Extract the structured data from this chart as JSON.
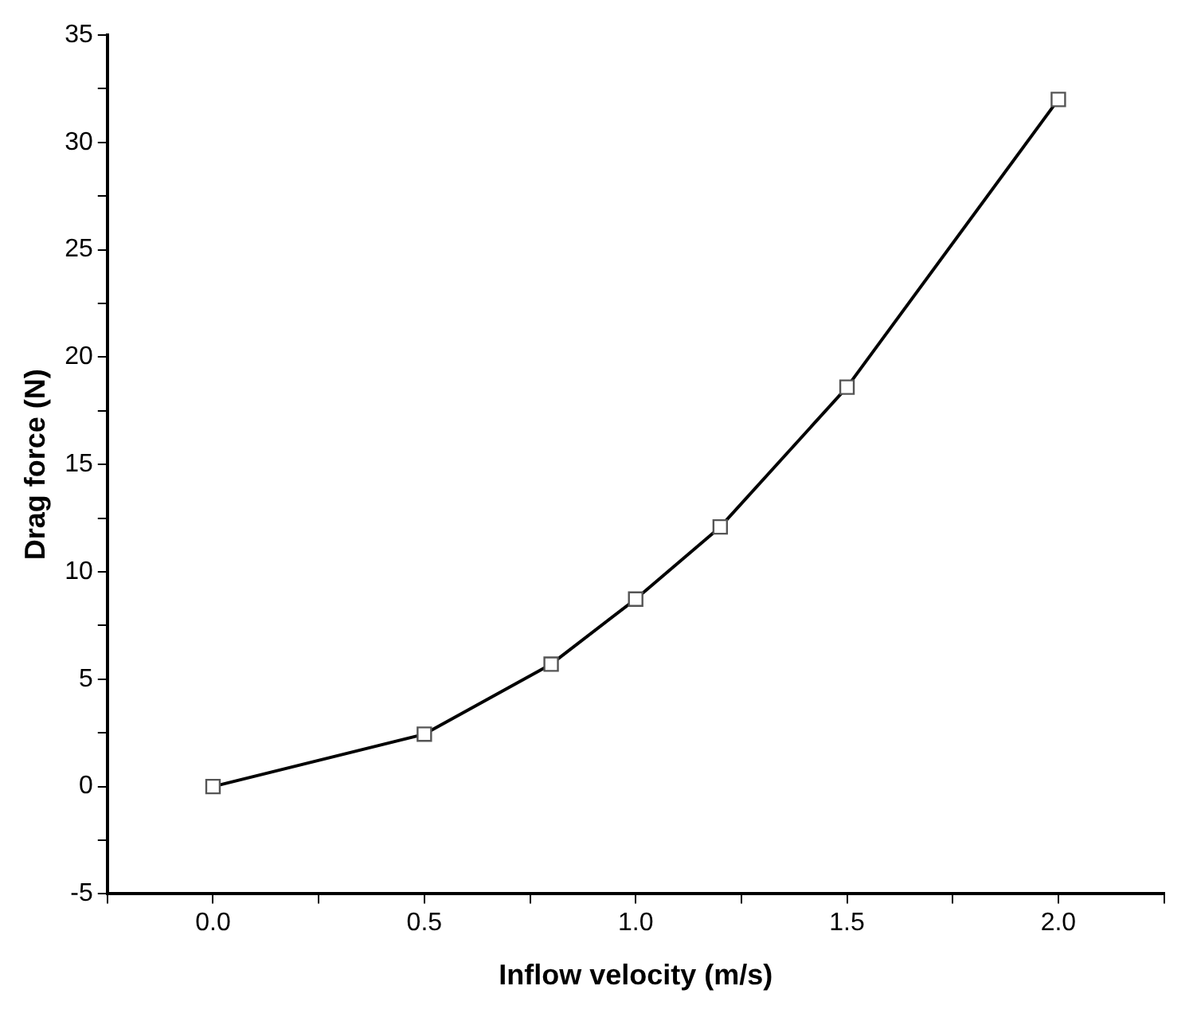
{
  "chart_data": {
    "type": "line",
    "xlabel": "Inflow velocity (m/s)",
    "ylabel": "Drag force (N)",
    "x": [
      0,
      0.5,
      0.8,
      1.0,
      1.2,
      1.5,
      2.0
    ],
    "series": [
      {
        "color": "#000000",
        "values": [
          0,
          2.44,
          5.7,
          8.73,
          12.09,
          18.6,
          32.0
        ]
      }
    ],
    "xlim": [
      -0.25,
      2.25
    ],
    "xticks": [
      {
        "value": -0.25,
        "label": null
      },
      {
        "value": 0,
        "label": "0.0"
      },
      {
        "value": 0.25,
        "label": null
      },
      {
        "value": 0.5,
        "label": "0.5"
      },
      {
        "value": 0.75,
        "label": null
      },
      {
        "value": 1,
        "label": "1.0"
      },
      {
        "value": 1.25,
        "label": null
      },
      {
        "value": 1.5,
        "label": "1.5"
      },
      {
        "value": 1.75,
        "label": null
      },
      {
        "value": 2,
        "label": "2.0"
      },
      {
        "value": 2.25,
        "label": null
      }
    ],
    "ylim": [
      -5,
      35
    ],
    "yticks": [
      -5,
      {
        "value": -2.5,
        "label": null
      },
      0,
      {
        "value": 2.5,
        "label": null
      },
      5,
      {
        "value": 7.5,
        "label": null
      },
      10,
      {
        "value": 12.5,
        "label": null
      },
      15,
      {
        "value": 17.5,
        "label": null
      },
      20,
      {
        "value": 22.5,
        "label": null
      },
      25,
      {
        "value": 27.5,
        "label": null
      },
      30,
      {
        "value": 32.5,
        "label": null
      },
      35
    ],
    "marker": "square",
    "line_style": "solid",
    "grid": false,
    "legend": false
  }
}
